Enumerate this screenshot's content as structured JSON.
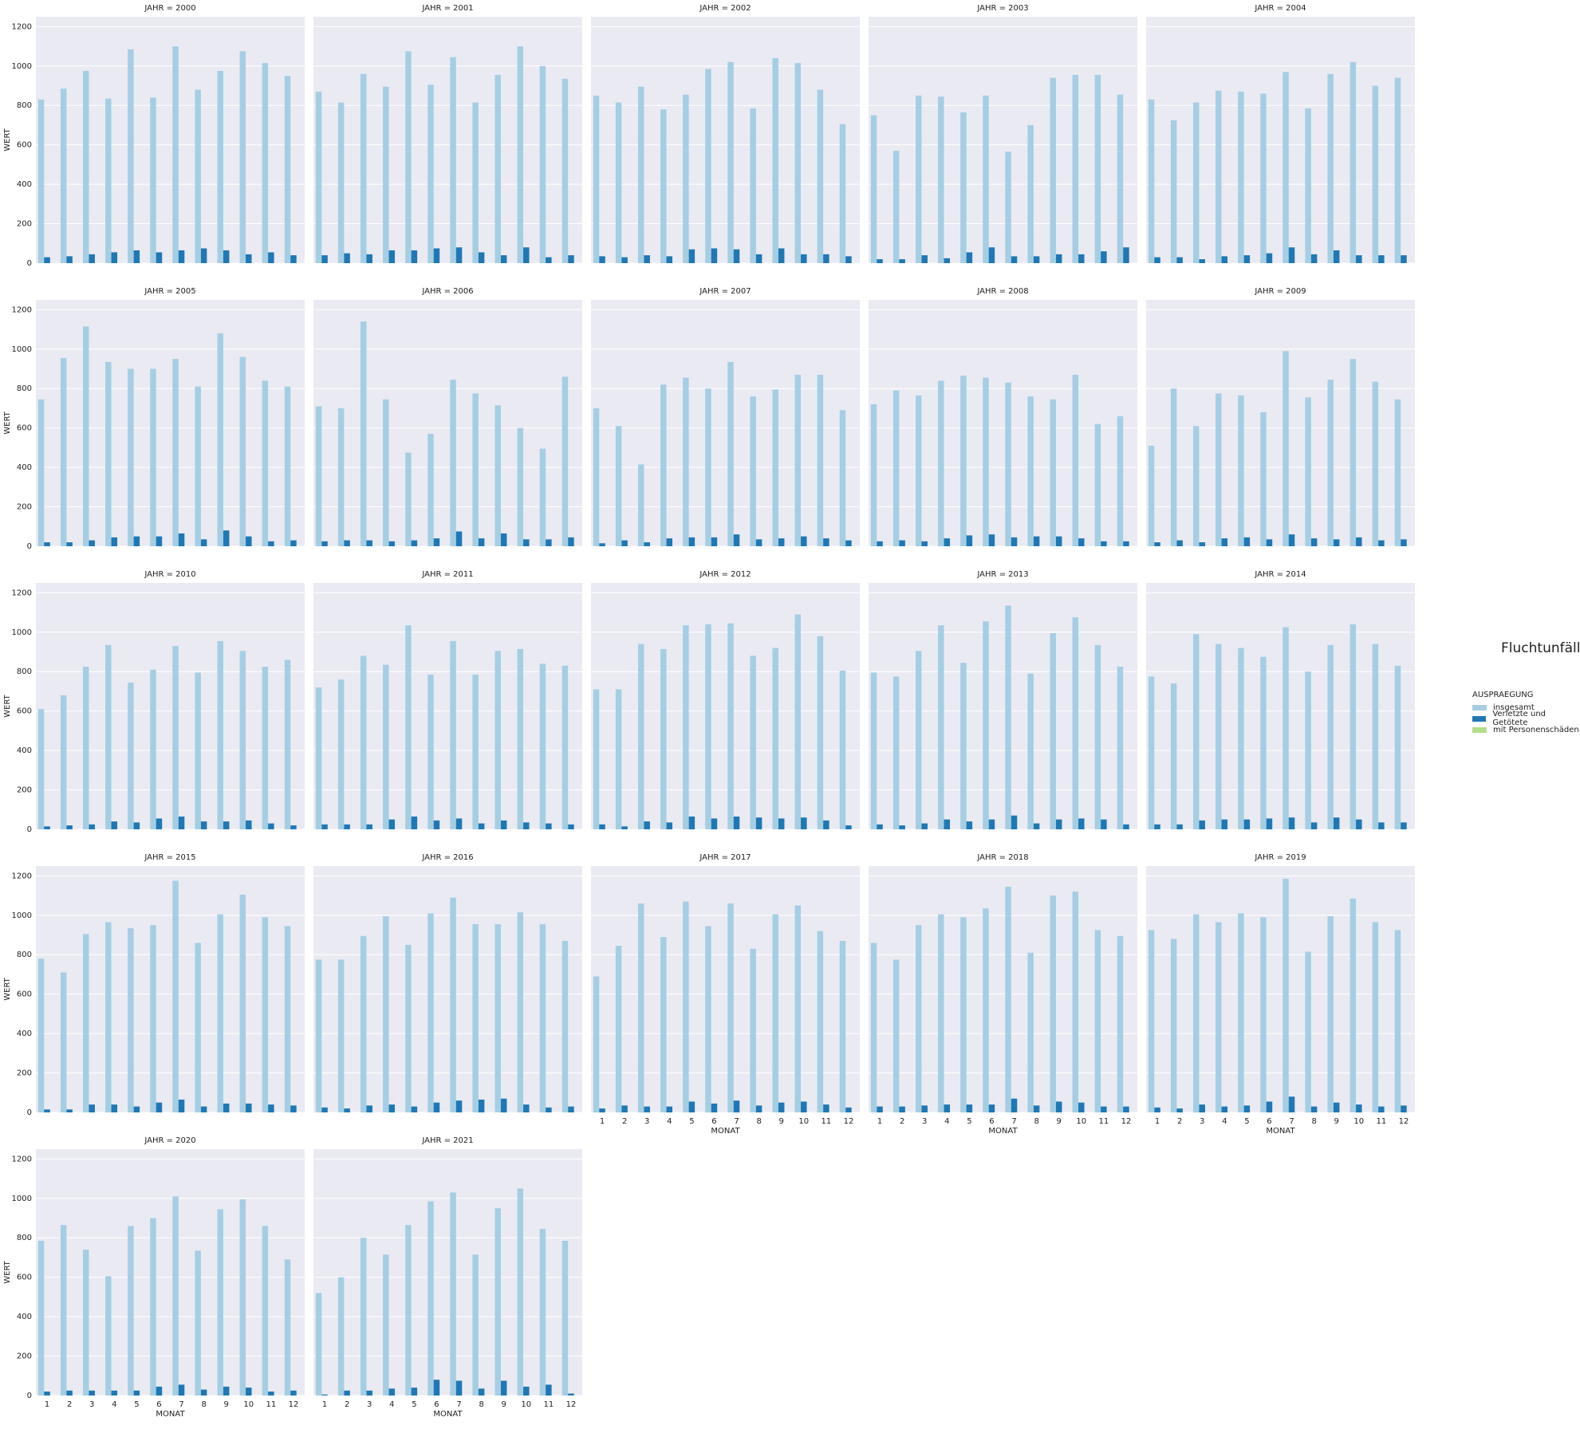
{
  "figure": {
    "suptitle": "Fluchtunfälle",
    "facet_prefix": "JAHR = "
  },
  "legend": {
    "title": "AUSPRAEGUNG",
    "items": [
      {
        "label": "insgesamt",
        "color": "#a6cee3"
      },
      {
        "label": "Verletzte und Getötete",
        "color": "#1f78b4"
      },
      {
        "label": "mit Personenschäden",
        "color": "#b2df8a"
      }
    ]
  },
  "chart_data": {
    "type": "bar",
    "xlabel": "MONAT",
    "ylabel": "WERT",
    "ylim": [
      0,
      1250
    ],
    "yticks": [
      0,
      200,
      400,
      600,
      800,
      1000,
      1200
    ],
    "categories": [
      "1",
      "2",
      "3",
      "4",
      "5",
      "6",
      "7",
      "8",
      "9",
      "10",
      "11",
      "12"
    ],
    "grid": true,
    "legend_position": "right",
    "series_names": [
      "insgesamt",
      "Verletzte und Getötete",
      "mit Personenschäden"
    ],
    "panels": [
      {
        "year": "2000",
        "insgesamt": [
          830,
          885,
          975,
          835,
          1085,
          840,
          1100,
          880,
          975,
          1075,
          1015,
          950
        ],
        "verletzte": [
          30,
          35,
          45,
          55,
          65,
          55,
          65,
          75,
          65,
          45,
          55,
          40
        ],
        "personen": [
          0,
          0,
          0,
          0,
          0,
          0,
          0,
          0,
          0,
          0,
          0,
          0
        ]
      },
      {
        "year": "2001",
        "insgesamt": [
          870,
          815,
          960,
          895,
          1075,
          905,
          1045,
          815,
          955,
          1100,
          1000,
          935
        ],
        "verletzte": [
          40,
          50,
          45,
          65,
          65,
          75,
          80,
          55,
          40,
          80,
          30,
          40
        ],
        "personen": [
          0,
          0,
          0,
          0,
          0,
          0,
          0,
          0,
          0,
          0,
          0,
          0
        ]
      },
      {
        "year": "2002",
        "insgesamt": [
          850,
          815,
          895,
          780,
          855,
          985,
          1020,
          785,
          1040,
          1015,
          880,
          705
        ],
        "verletzte": [
          35,
          30,
          40,
          35,
          70,
          75,
          70,
          45,
          75,
          45,
          45,
          35
        ],
        "personen": [
          0,
          0,
          0,
          0,
          0,
          0,
          0,
          0,
          0,
          0,
          0,
          0
        ]
      },
      {
        "year": "2003",
        "insgesamt": [
          750,
          570,
          850,
          845,
          765,
          850,
          565,
          700,
          940,
          955,
          955,
          855
        ],
        "verletzte": [
          20,
          20,
          40,
          25,
          55,
          80,
          35,
          35,
          45,
          45,
          60,
          80
        ],
        "personen": [
          0,
          0,
          0,
          0,
          0,
          0,
          0,
          0,
          0,
          0,
          0,
          0
        ]
      },
      {
        "year": "2004",
        "insgesamt": [
          830,
          725,
          815,
          875,
          870,
          860,
          970,
          785,
          960,
          1020,
          900,
          940
        ],
        "verletzte": [
          30,
          30,
          20,
          35,
          40,
          50,
          80,
          45,
          65,
          40,
          40,
          40
        ],
        "personen": [
          0,
          0,
          0,
          0,
          0,
          0,
          0,
          0,
          0,
          0,
          0,
          0
        ]
      },
      {
        "year": "2005",
        "insgesamt": [
          745,
          955,
          1115,
          935,
          900,
          900,
          950,
          810,
          1080,
          960,
          840,
          810
        ],
        "verletzte": [
          20,
          20,
          30,
          45,
          50,
          50,
          65,
          35,
          80,
          50,
          25,
          30
        ],
        "personen": [
          0,
          0,
          0,
          0,
          0,
          0,
          0,
          0,
          0,
          0,
          0,
          0
        ]
      },
      {
        "year": "2006",
        "insgesamt": [
          710,
          700,
          1140,
          745,
          475,
          570,
          845,
          775,
          715,
          600,
          495,
          860
        ],
        "verletzte": [
          25,
          30,
          30,
          25,
          30,
          40,
          75,
          40,
          65,
          35,
          35,
          45
        ],
        "personen": [
          0,
          0,
          0,
          0,
          0,
          0,
          0,
          0,
          0,
          0,
          0,
          0
        ]
      },
      {
        "year": "2007",
        "insgesamt": [
          700,
          610,
          415,
          820,
          855,
          800,
          935,
          760,
          795,
          870,
          870,
          690
        ],
        "verletzte": [
          15,
          30,
          20,
          40,
          45,
          45,
          60,
          35,
          40,
          50,
          40,
          30
        ],
        "personen": [
          0,
          0,
          0,
          0,
          0,
          0,
          0,
          0,
          0,
          0,
          0,
          0
        ]
      },
      {
        "year": "2008",
        "insgesamt": [
          720,
          790,
          765,
          840,
          865,
          855,
          830,
          760,
          745,
          870,
          620,
          660
        ],
        "verletzte": [
          25,
          30,
          25,
          40,
          55,
          60,
          45,
          50,
          50,
          40,
          25,
          25
        ],
        "personen": [
          0,
          0,
          0,
          0,
          0,
          0,
          0,
          0,
          0,
          0,
          0,
          0
        ]
      },
      {
        "year": "2009",
        "insgesamt": [
          510,
          800,
          610,
          775,
          765,
          680,
          990,
          755,
          845,
          950,
          835,
          745
        ],
        "verletzte": [
          20,
          30,
          20,
          40,
          45,
          35,
          60,
          40,
          35,
          45,
          30,
          35
        ],
        "personen": [
          0,
          0,
          0,
          0,
          0,
          0,
          0,
          0,
          0,
          0,
          0,
          0
        ]
      },
      {
        "year": "2010",
        "insgesamt": [
          610,
          680,
          825,
          935,
          745,
          810,
          930,
          795,
          955,
          905,
          825,
          860
        ],
        "verletzte": [
          15,
          20,
          25,
          40,
          35,
          55,
          65,
          40,
          40,
          45,
          30,
          20
        ],
        "personen": [
          0,
          0,
          0,
          0,
          0,
          0,
          0,
          0,
          0,
          0,
          0,
          0
        ]
      },
      {
        "year": "2011",
        "insgesamt": [
          720,
          760,
          880,
          835,
          1035,
          785,
          955,
          785,
          905,
          915,
          840,
          830
        ],
        "verletzte": [
          25,
          25,
          25,
          50,
          65,
          45,
          55,
          30,
          45,
          35,
          30,
          25
        ],
        "personen": [
          0,
          0,
          0,
          0,
          0,
          0,
          0,
          0,
          0,
          0,
          0,
          0
        ]
      },
      {
        "year": "2012",
        "insgesamt": [
          710,
          710,
          940,
          915,
          1035,
          1040,
          1045,
          880,
          920,
          1090,
          980,
          805
        ],
        "verletzte": [
          25,
          15,
          40,
          35,
          65,
          55,
          65,
          60,
          55,
          60,
          45,
          20
        ],
        "personen": [
          0,
          0,
          0,
          0,
          0,
          0,
          0,
          0,
          0,
          0,
          0,
          0
        ]
      },
      {
        "year": "2013",
        "insgesamt": [
          795,
          775,
          905,
          1035,
          845,
          1055,
          1135,
          790,
          995,
          1075,
          935,
          825
        ],
        "verletzte": [
          25,
          20,
          30,
          50,
          40,
          50,
          70,
          30,
          50,
          55,
          50,
          25
        ],
        "personen": [
          0,
          0,
          0,
          0,
          0,
          0,
          0,
          0,
          0,
          0,
          0,
          0
        ]
      },
      {
        "year": "2014",
        "insgesamt": [
          775,
          740,
          990,
          940,
          920,
          875,
          1025,
          800,
          935,
          1040,
          940,
          830
        ],
        "verletzte": [
          25,
          25,
          45,
          50,
          50,
          55,
          60,
          35,
          60,
          50,
          35,
          35
        ],
        "personen": [
          0,
          0,
          0,
          0,
          0,
          0,
          0,
          0,
          0,
          0,
          0,
          0
        ]
      },
      {
        "year": "2015",
        "insgesamt": [
          780,
          710,
          905,
          965,
          935,
          950,
          1175,
          860,
          1005,
          1105,
          990,
          945
        ],
        "verletzte": [
          15,
          15,
          40,
          40,
          30,
          50,
          65,
          30,
          45,
          45,
          40,
          35
        ],
        "personen": [
          0,
          0,
          0,
          0,
          0,
          0,
          0,
          0,
          0,
          0,
          0,
          0
        ]
      },
      {
        "year": "2016",
        "insgesamt": [
          775,
          775,
          895,
          995,
          850,
          1010,
          1090,
          955,
          955,
          1015,
          955,
          870
        ],
        "verletzte": [
          25,
          20,
          35,
          40,
          30,
          50,
          60,
          65,
          70,
          40,
          25,
          30
        ],
        "personen": [
          0,
          0,
          0,
          0,
          0,
          0,
          0,
          0,
          0,
          0,
          0,
          0
        ]
      },
      {
        "year": "2017",
        "insgesamt": [
          690,
          845,
          1060,
          890,
          1070,
          945,
          1060,
          830,
          1005,
          1050,
          920,
          870
        ],
        "verletzte": [
          20,
          35,
          30,
          30,
          55,
          45,
          60,
          35,
          50,
          55,
          40,
          25
        ],
        "personen": [
          0,
          0,
          0,
          0,
          0,
          0,
          0,
          0,
          0,
          0,
          0,
          0
        ]
      },
      {
        "year": "2018",
        "insgesamt": [
          860,
          775,
          950,
          1005,
          990,
          1035,
          1145,
          810,
          1100,
          1120,
          925,
          895
        ],
        "verletzte": [
          30,
          30,
          35,
          40,
          40,
          40,
          70,
          35,
          55,
          50,
          30,
          30
        ],
        "personen": [
          0,
          0,
          0,
          0,
          0,
          0,
          0,
          0,
          0,
          0,
          0,
          0
        ]
      },
      {
        "year": "2019",
        "insgesamt": [
          925,
          880,
          1005,
          965,
          1010,
          990,
          1185,
          815,
          995,
          1085,
          965,
          925
        ],
        "verletzte": [
          25,
          20,
          40,
          30,
          35,
          55,
          80,
          30,
          50,
          40,
          30,
          35
        ],
        "personen": [
          0,
          0,
          0,
          0,
          0,
          0,
          0,
          0,
          0,
          0,
          0,
          0
        ]
      },
      {
        "year": "2020",
        "insgesamt": [
          785,
          865,
          740,
          605,
          860,
          900,
          1010,
          735,
          945,
          995,
          860,
          690
        ],
        "verletzte": [
          20,
          25,
          25,
          25,
          25,
          45,
          55,
          30,
          45,
          40,
          20,
          25
        ],
        "personen": [
          0,
          0,
          0,
          0,
          0,
          0,
          0,
          0,
          0,
          0,
          0,
          0
        ]
      },
      {
        "year": "2021",
        "insgesamt": [
          520,
          600,
          800,
          715,
          865,
          985,
          1030,
          715,
          950,
          1050,
          845,
          785
        ],
        "verletzte": [
          5,
          25,
          25,
          35,
          40,
          80,
          75,
          35,
          75,
          45,
          55,
          10
        ],
        "personen": [
          0,
          0,
          0,
          0,
          0,
          0,
          0,
          0,
          0,
          0,
          0,
          0
        ]
      }
    ]
  }
}
